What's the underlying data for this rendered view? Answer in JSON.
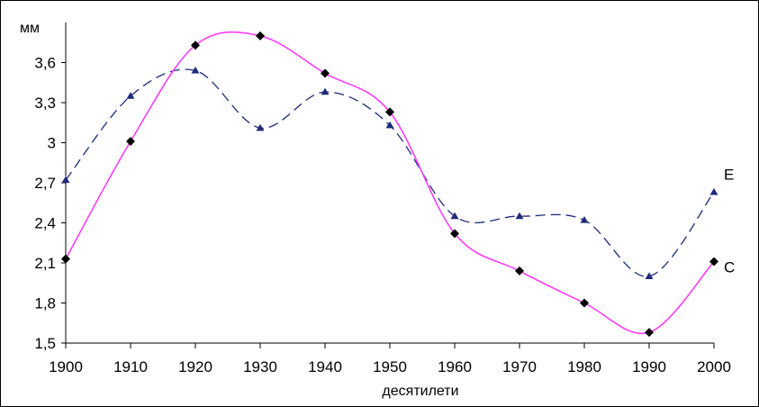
{
  "chart_data": {
    "type": "line",
    "ylabel": "мм",
    "xlabel": "десятилети",
    "x": [
      1900,
      1910,
      1920,
      1930,
      1940,
      1950,
      1960,
      1970,
      1980,
      1990,
      2000
    ],
    "x_tick_labels": [
      "1900",
      "1910",
      "1920",
      "1930",
      "1940",
      "1950",
      "1960",
      "1970",
      "1980",
      "1990",
      "2000"
    ],
    "y_tick_values": [
      1.5,
      1.8,
      2.1,
      2.4,
      2.7,
      3.0,
      3.3,
      3.6
    ],
    "y_tick_labels": [
      "1,5",
      "1,8",
      "2,1",
      "2,4",
      "2,7",
      "3",
      "3,3",
      "3,6"
    ],
    "ylim": [
      1.5,
      3.85
    ],
    "xlim": [
      1900,
      2000
    ],
    "grid": false,
    "series": [
      {
        "name": "E",
        "color": "#1f2a7a",
        "line_style": "dashed",
        "marker": "triangle",
        "values": [
          2.72,
          3.35,
          3.54,
          3.11,
          3.38,
          3.13,
          2.45,
          2.45,
          2.42,
          2.0,
          2.63
        ]
      },
      {
        "name": "C",
        "color": "#ff33ff",
        "line_style": "solid",
        "marker": "diamond",
        "values": [
          2.13,
          3.01,
          3.73,
          3.8,
          3.52,
          3.23,
          2.32,
          2.04,
          1.8,
          1.58,
          2.11
        ]
      }
    ]
  }
}
